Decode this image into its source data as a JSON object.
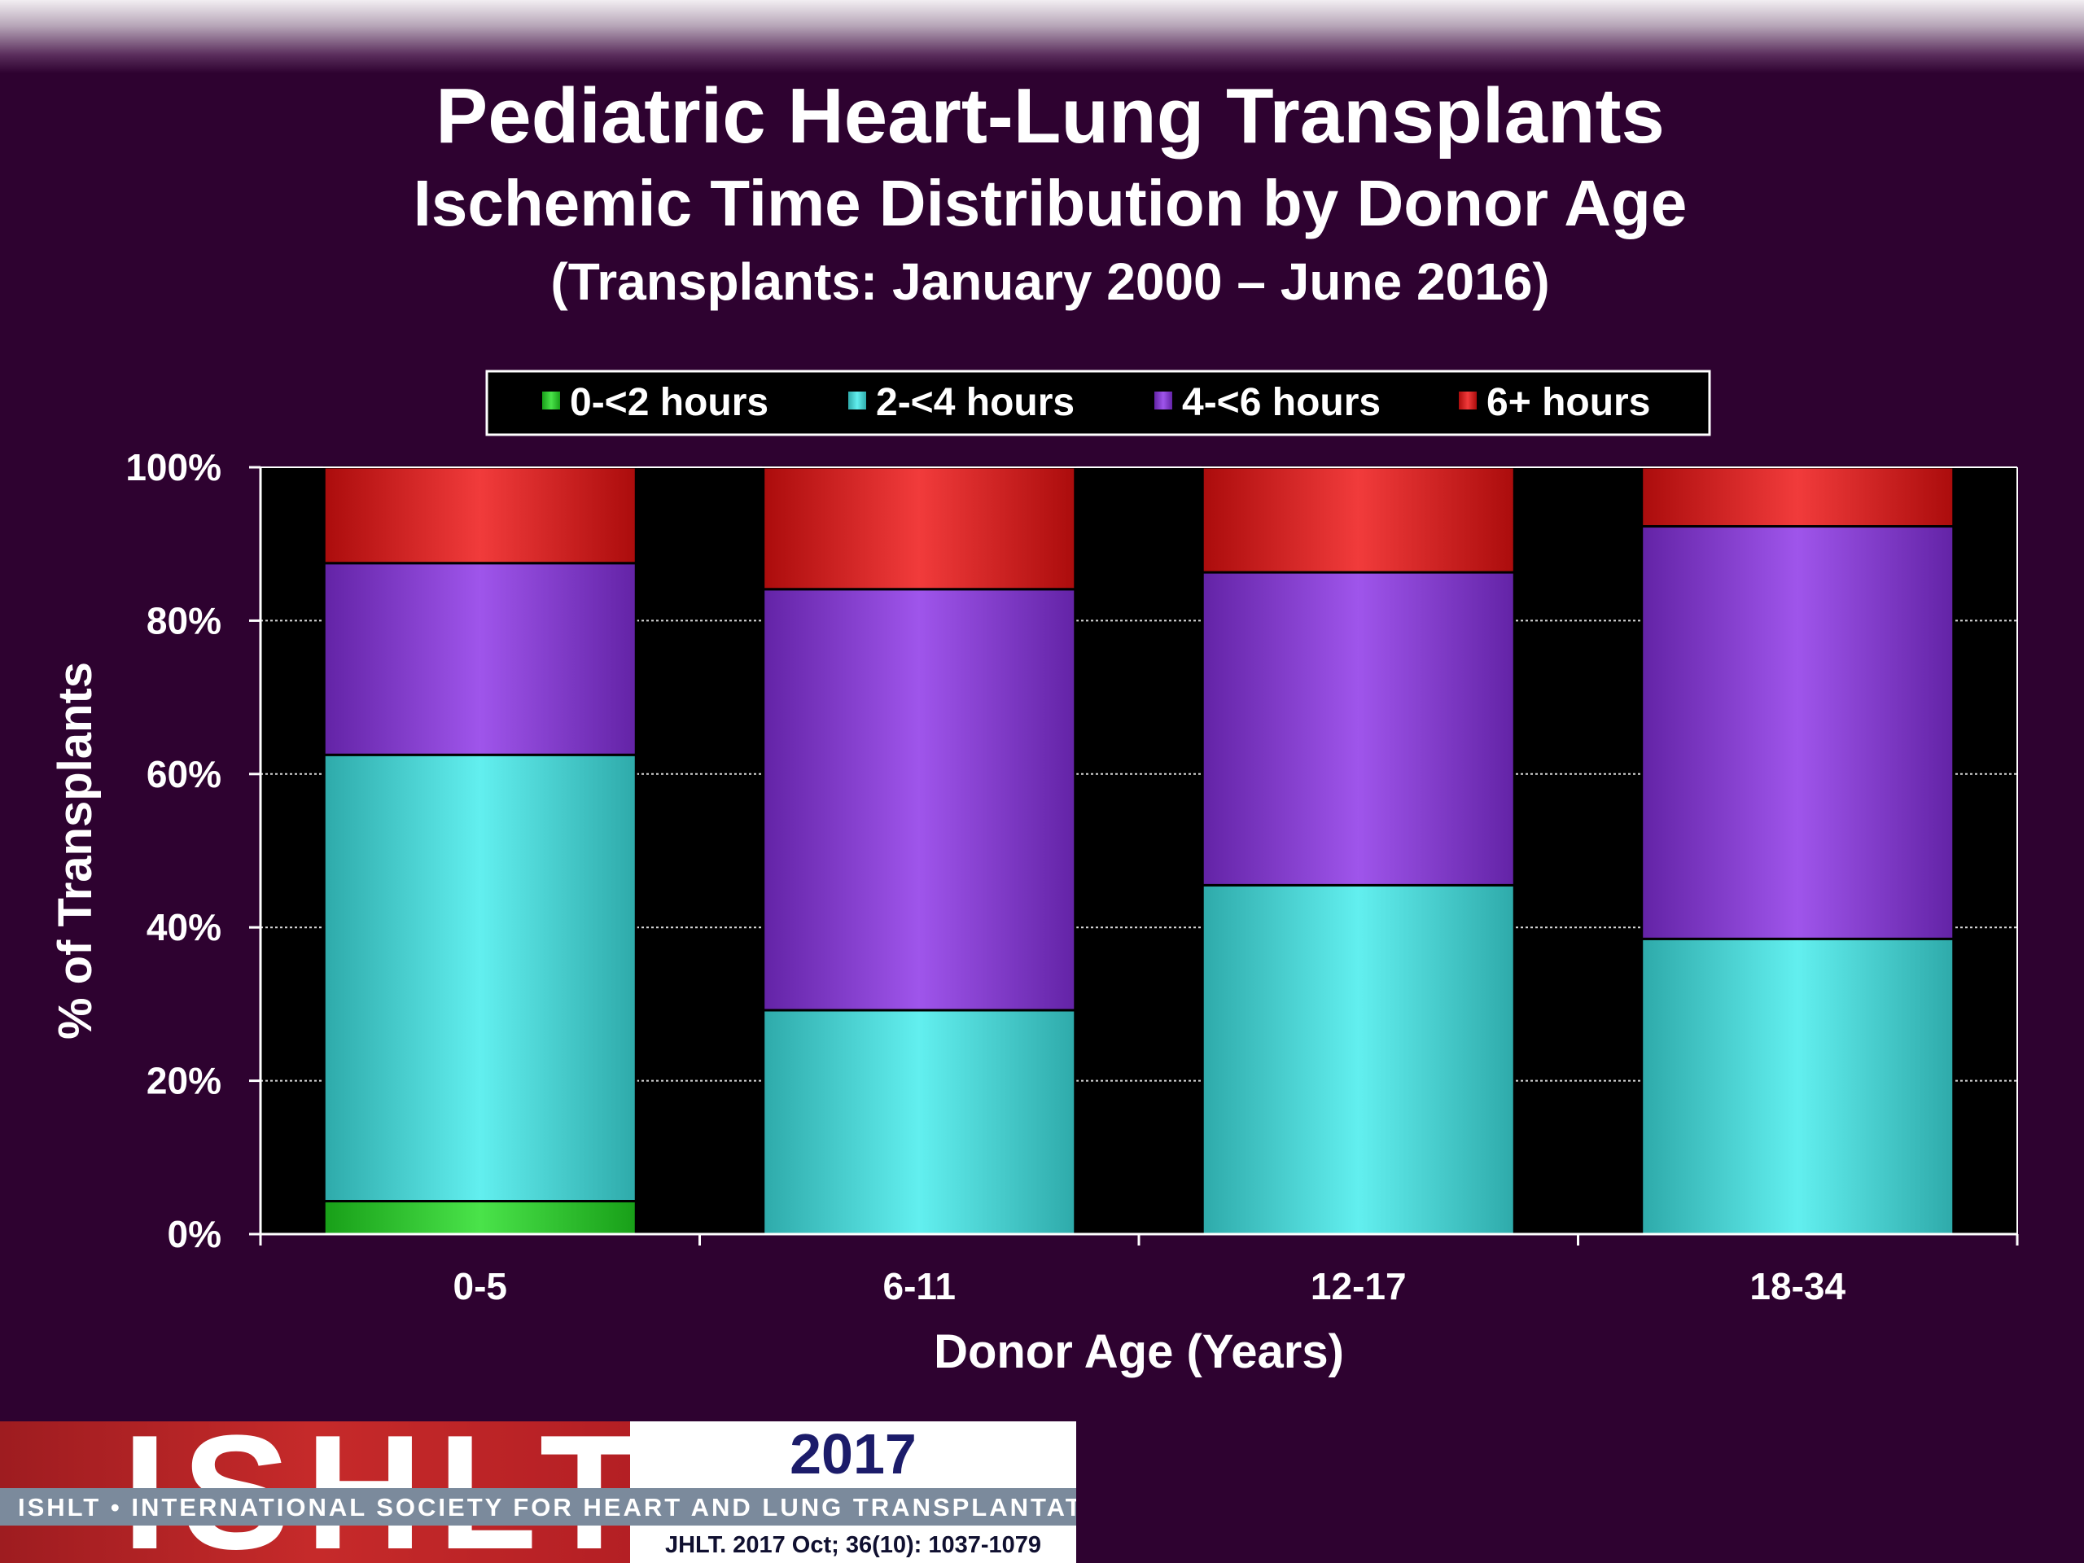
{
  "slide": {
    "title": "Pediatric Heart-Lung Transplants",
    "subtitle": "Ischemic Time Distribution by Donor Age",
    "period": "(Transplants: January 2000 – June 2016)"
  },
  "chart_data": {
    "type": "bar",
    "stacked": true,
    "percent": true,
    "categories": [
      "0-5",
      "6-11",
      "12-17",
      "18-34"
    ],
    "series": [
      {
        "name": "0-<2 hours",
        "color": "#22dd22",
        "values": [
          4.3,
          0,
          0,
          0
        ]
      },
      {
        "name": "2-<4 hours",
        "color": "#40ecec",
        "values": [
          58.2,
          29.2,
          45.5,
          38.5
        ]
      },
      {
        "name": "4-<6 hours",
        "color": "#8a30e6",
        "values": [
          25.0,
          54.9,
          40.8,
          53.8
        ]
      },
      {
        "name": "6+ hours",
        "color": "#ee1010",
        "values": [
          12.5,
          15.9,
          13.7,
          7.7
        ]
      }
    ],
    "xlabel": "Donor Age (Years)",
    "ylabel": "% of Transplants",
    "ylim": [
      0,
      100
    ],
    "yticks": [
      "0%",
      "20%",
      "40%",
      "60%",
      "80%",
      "100%"
    ],
    "legend_position": "top",
    "grid": true
  },
  "logo": {
    "name": "ISHLT",
    "year": "2017",
    "org": "ISHLT • INTERNATIONAL SOCIETY FOR HEART AND LUNG TRANSPLANTATION",
    "citation": "JHLT. 2017 Oct; 36(10): 1037-1079"
  }
}
